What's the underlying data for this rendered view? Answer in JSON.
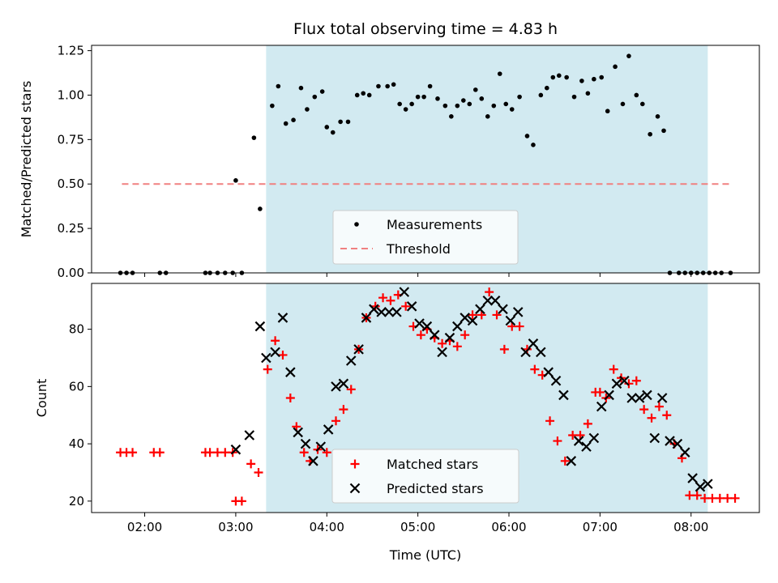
{
  "title": "Flux total observing time = 4.83 h",
  "chart_data": [
    {
      "type": "scatter",
      "ylabel": "Matched/Predicted stars",
      "x_axis": "time",
      "xlim": [
        "01:25",
        "08:45"
      ],
      "ylim": [
        0,
        1.28
      ],
      "y_ticks": [
        0.0,
        0.25,
        0.5,
        0.75,
        1.0,
        1.25
      ],
      "y_tick_labels": [
        "0.00",
        "0.25",
        "0.50",
        "0.75",
        "1.00",
        "1.25"
      ],
      "grid": false,
      "shaded_span": {
        "start": "03:20",
        "end": "08:11",
        "color": "#add8e6"
      },
      "legend": {
        "placement": "lower-center",
        "entries": [
          "Measurements",
          "Threshold"
        ]
      },
      "series": [
        {
          "name": "Measurements",
          "color": "#000000",
          "marker": "dot",
          "x": [
            "01:44",
            "01:48",
            "01:52",
            "02:10",
            "02:14",
            "02:40",
            "02:43",
            "02:48",
            "02:53",
            "02:58",
            "03:04",
            "03:00",
            "03:12",
            "03:16",
            "03:24",
            "03:28",
            "03:33",
            "03:38",
            "03:43",
            "03:47",
            "03:52",
            "03:57",
            "04:00",
            "04:04",
            "04:09",
            "04:14",
            "04:20",
            "04:24",
            "04:28",
            "04:34",
            "04:40",
            "04:44",
            "04:48",
            "04:52",
            "04:56",
            "05:00",
            "05:04",
            "05:08",
            "05:13",
            "05:18",
            "05:22",
            "05:26",
            "05:30",
            "05:34",
            "05:38",
            "05:42",
            "05:46",
            "05:50",
            "05:54",
            "05:58",
            "06:02",
            "06:07",
            "06:12",
            "06:16",
            "06:21",
            "06:25",
            "06:29",
            "06:33",
            "06:38",
            "06:43",
            "06:48",
            "06:52",
            "06:56",
            "07:01",
            "07:05",
            "07:10",
            "07:15",
            "07:19",
            "07:24",
            "07:28",
            "07:33",
            "07:38",
            "07:42",
            "07:46",
            "07:52",
            "07:56",
            "08:00",
            "08:04",
            "08:08",
            "08:12",
            "08:16",
            "08:20",
            "08:26"
          ],
          "y": [
            0.0,
            0.0,
            0.0,
            0.0,
            0.0,
            0.0,
            0.0,
            0.0,
            0.0,
            0.0,
            0.0,
            0.52,
            0.76,
            0.36,
            0.94,
            1.05,
            0.84,
            0.86,
            1.04,
            0.92,
            0.99,
            1.02,
            0.82,
            0.79,
            0.85,
            0.85,
            1.0,
            1.01,
            1.0,
            1.05,
            1.05,
            1.06,
            0.95,
            0.92,
            0.95,
            0.99,
            0.99,
            1.05,
            0.98,
            0.94,
            0.88,
            0.94,
            0.97,
            0.95,
            1.03,
            0.98,
            0.88,
            0.94,
            1.12,
            0.95,
            0.92,
            0.99,
            0.77,
            0.72,
            1.0,
            1.04,
            1.1,
            1.11,
            1.1,
            0.99,
            1.08,
            1.01,
            1.09,
            1.1,
            0.91,
            1.16,
            0.95,
            1.22,
            1.0,
            0.95,
            0.78,
            0.88,
            0.8,
            0.0,
            0.0,
            0.0,
            0.0,
            0.0,
            0.0,
            0.0,
            0.0,
            0.0,
            0.0
          ]
        },
        {
          "name": "Threshold",
          "color": "#f08080",
          "style": "dashed",
          "x": [
            "01:45",
            "08:26"
          ],
          "y": [
            0.5,
            0.5
          ]
        }
      ]
    },
    {
      "type": "scatter",
      "xlabel": "Time (UTC)",
      "ylabel": "Count",
      "x_axis": "time",
      "xlim": [
        "01:25",
        "08:45"
      ],
      "ylim": [
        16,
        96
      ],
      "x_ticks": [
        "02:00",
        "03:00",
        "04:00",
        "05:00",
        "06:00",
        "07:00",
        "08:00"
      ],
      "y_ticks": [
        20,
        40,
        60,
        80
      ],
      "grid": false,
      "shaded_span": {
        "start": "03:20",
        "end": "08:11",
        "color": "#add8e6"
      },
      "legend": {
        "placement": "lower-center",
        "entries": [
          "Matched stars",
          "Predicted stars"
        ]
      },
      "series": [
        {
          "name": "Matched stars",
          "color": "#ff0000",
          "marker": "plus",
          "x": [
            "01:44",
            "01:48",
            "01:52",
            "02:06",
            "02:10",
            "02:40",
            "02:43",
            "02:48",
            "02:53",
            "02:58",
            "03:00",
            "03:04",
            "03:10",
            "03:15",
            "03:21",
            "03:26",
            "03:31",
            "03:36",
            "03:40",
            "03:45",
            "03:49",
            "03:54",
            "04:00",
            "04:06",
            "04:11",
            "04:16",
            "04:21",
            "04:26",
            "04:32",
            "04:37",
            "04:42",
            "04:47",
            "04:52",
            "04:57",
            "05:02",
            "05:06",
            "05:11",
            "05:16",
            "05:21",
            "05:26",
            "05:31",
            "05:36",
            "05:42",
            "05:47",
            "05:52",
            "05:57",
            "06:02",
            "06:07",
            "06:12",
            "06:17",
            "06:22",
            "06:27",
            "06:32",
            "06:37",
            "06:42",
            "06:47",
            "06:52",
            "06:57",
            "07:00",
            "07:04",
            "07:09",
            "07:14",
            "07:19",
            "07:24",
            "07:29",
            "07:34",
            "07:39",
            "07:44",
            "07:49",
            "07:54",
            "07:59",
            "08:04",
            "08:09",
            "08:14",
            "08:19",
            "08:24",
            "08:29"
          ],
          "y": [
            37,
            37,
            37,
            37,
            37,
            37,
            37,
            37,
            37,
            37,
            20,
            20,
            33,
            30,
            66,
            76,
            71,
            56,
            46,
            37,
            34,
            38,
            37,
            48,
            52,
            59,
            73,
            84,
            88,
            91,
            90,
            92,
            88,
            81,
            78,
            80,
            77,
            75,
            76,
            74,
            78,
            85,
            85,
            93,
            85,
            73,
            81,
            81,
            73,
            66,
            64,
            48,
            41,
            34,
            43,
            43,
            47,
            58,
            58,
            56,
            66,
            63,
            61,
            62,
            52,
            49,
            53,
            50,
            40,
            35,
            22,
            22,
            21,
            21,
            21,
            21,
            21
          ]
        },
        {
          "name": "Predicted stars",
          "color": "#000000",
          "marker": "x",
          "x": [
            "03:00",
            "03:09",
            "03:16",
            "03:20",
            "03:26",
            "03:31",
            "03:36",
            "03:41",
            "03:46",
            "03:51",
            "03:56",
            "04:01",
            "04:06",
            "04:11",
            "04:16",
            "04:21",
            "04:26",
            "04:31",
            "04:36",
            "04:41",
            "04:46",
            "04:51",
            "04:56",
            "05:01",
            "05:06",
            "05:11",
            "05:16",
            "05:21",
            "05:26",
            "05:31",
            "05:36",
            "05:41",
            "05:46",
            "05:51",
            "05:56",
            "06:01",
            "06:06",
            "06:11",
            "06:16",
            "06:21",
            "06:26",
            "06:31",
            "06:36",
            "06:41",
            "06:46",
            "06:51",
            "06:56",
            "07:01",
            "07:06",
            "07:11",
            "07:16",
            "07:21",
            "07:26",
            "07:31",
            "07:36",
            "07:41",
            "07:46",
            "07:51",
            "07:56",
            "08:01",
            "08:06",
            "08:11"
          ],
          "y": [
            38,
            43,
            81,
            70,
            72,
            84,
            65,
            44,
            40,
            34,
            39,
            45,
            60,
            61,
            69,
            73,
            84,
            87,
            86,
            86,
            86,
            93,
            88,
            82,
            81,
            78,
            72,
            77,
            81,
            84,
            83,
            87,
            90,
            90,
            87,
            83,
            86,
            72,
            75,
            72,
            65,
            62,
            57,
            34,
            41,
            39,
            42,
            53,
            57,
            61,
            62,
            56,
            56,
            57,
            42,
            56,
            41,
            40,
            37,
            28,
            25,
            26
          ]
        }
      ]
    }
  ]
}
